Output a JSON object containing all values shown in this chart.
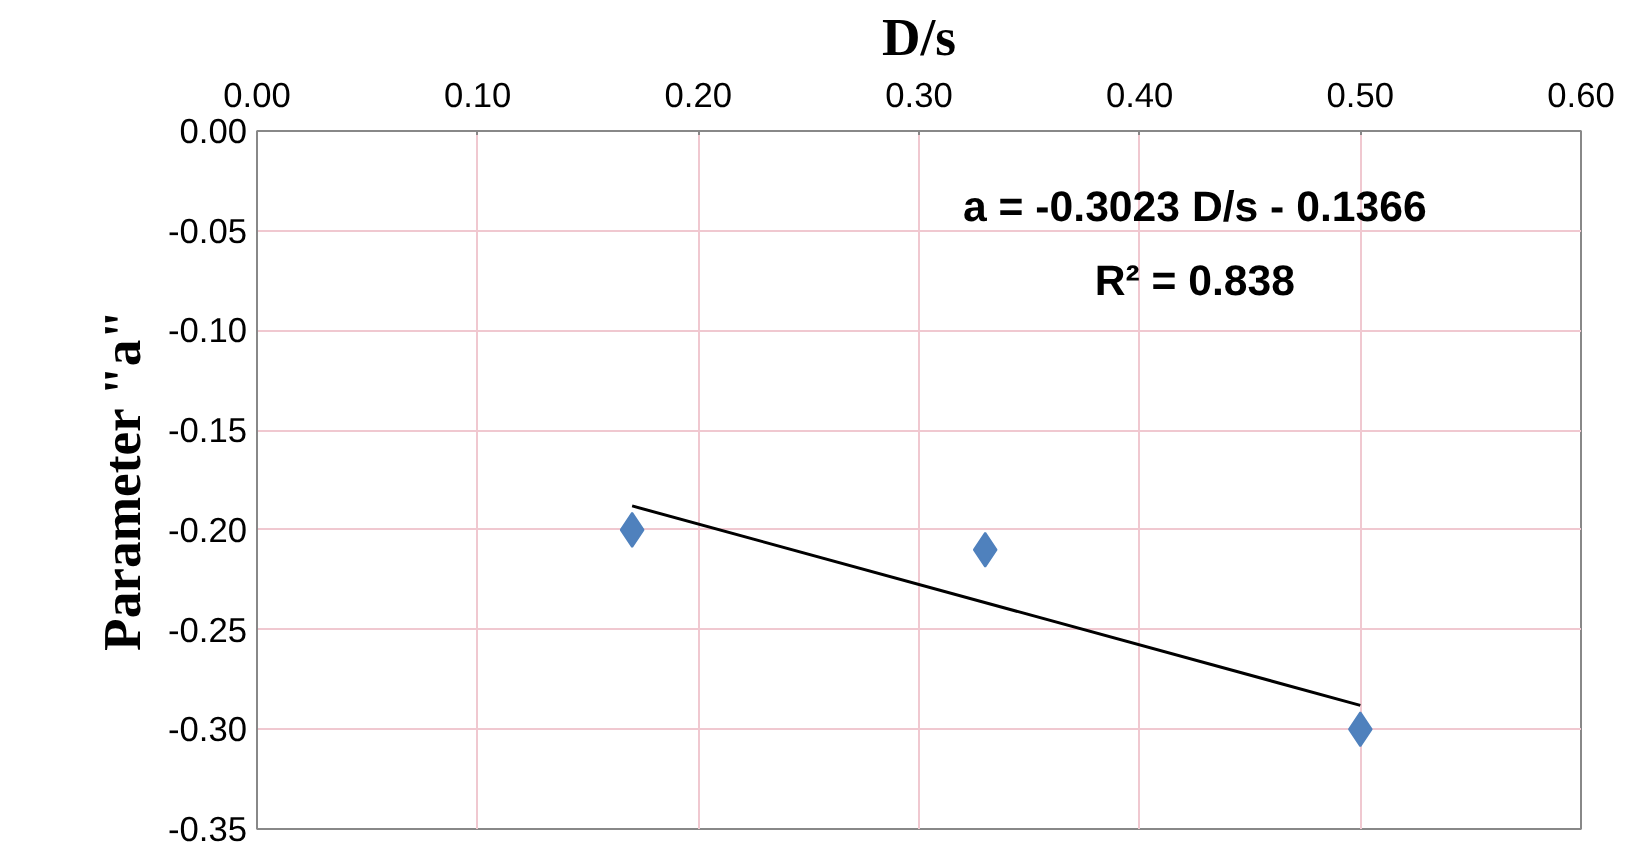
{
  "chart_data": {
    "type": "scatter",
    "xlabel": "D/s",
    "ylabel": "Parameter \"a\"",
    "x": [
      0.17,
      0.33,
      0.5
    ],
    "series": [
      {
        "color": "#4f81bd",
        "marker": "diamond",
        "values": [
          -0.2,
          -0.21,
          -0.3
        ]
      },
      {
        "type": "line",
        "color": "#000000",
        "x": [
          0.17,
          0.5
        ],
        "values": [
          -0.188,
          -0.288
        ],
        "line_style": "solid"
      }
    ],
    "xlim": [
      0,
      0.6
    ],
    "xticks": [
      {
        "value": 0,
        "label": "0.00"
      },
      {
        "value": 0.1,
        "label": "0.10"
      },
      {
        "value": 0.2,
        "label": "0.20"
      },
      {
        "value": 0.3,
        "label": "0.30"
      },
      {
        "value": 0.4,
        "label": "0.40"
      },
      {
        "value": 0.5,
        "label": "0.50"
      },
      {
        "value": 0.6,
        "label": "0.60"
      }
    ],
    "ylim": [
      -0.35,
      0
    ],
    "yticks": [
      {
        "value": 0,
        "label": "0.00"
      },
      {
        "value": -0.05,
        "label": "-0.05"
      },
      {
        "value": -0.1,
        "label": "-0.10"
      },
      {
        "value": -0.15,
        "label": "-0.15"
      },
      {
        "value": -0.2,
        "label": "-0.20"
      },
      {
        "value": -0.25,
        "label": "-0.25"
      },
      {
        "value": -0.3,
        "label": "-0.30"
      },
      {
        "value": -0.35,
        "label": "-0.35"
      }
    ],
    "grid": true,
    "annotations": [
      "a = -0.3023 D/s - 0.1366",
      "R² = 0.838"
    ]
  }
}
